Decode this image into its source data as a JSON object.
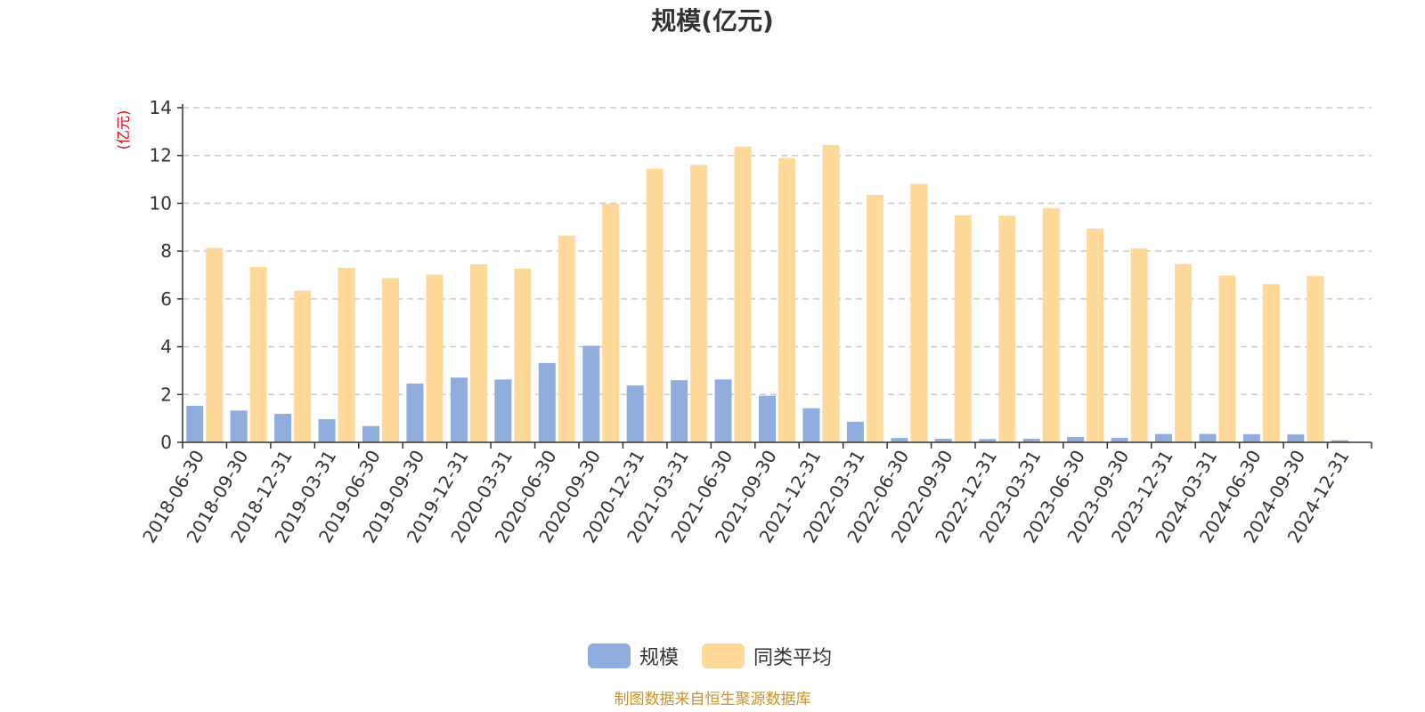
{
  "colors": {
    "series_scale": "#8faedd",
    "series_avg": "#ffd99a",
    "ylabel": "#e8000b",
    "source": "#c9932a",
    "axis": "#333333",
    "grid": "#cccccc"
  },
  "source_text": "制图数据来自恒生聚源数据库",
  "chart_data": {
    "type": "bar",
    "title": "规模(亿元)",
    "ylabel": "(亿元)",
    "xlabel": "",
    "ylim": [
      0,
      14
    ],
    "yticks": [
      0,
      2,
      4,
      6,
      8,
      10,
      12,
      14
    ],
    "grid": true,
    "legend_position": "bottom-center",
    "categories": [
      "2018-06-30",
      "2018-09-30",
      "2018-12-31",
      "2019-03-31",
      "2019-06-30",
      "2019-09-30",
      "2019-12-31",
      "2020-03-31",
      "2020-06-30",
      "2020-09-30",
      "2020-12-31",
      "2021-03-31",
      "2021-06-30",
      "2021-09-30",
      "2021-12-31",
      "2022-03-31",
      "2022-06-30",
      "2022-09-30",
      "2022-12-31",
      "2023-03-31",
      "2023-06-30",
      "2023-09-30",
      "2023-12-31",
      "2024-03-31",
      "2024-06-30",
      "2024-09-30",
      "2024-12-31"
    ],
    "series": [
      {
        "name": "规模",
        "color": "#8faedd",
        "values": [
          1.53,
          1.33,
          1.19,
          0.97,
          0.68,
          2.46,
          2.71,
          2.63,
          3.32,
          4.04,
          2.38,
          2.6,
          2.63,
          1.95,
          1.43,
          0.86,
          0.18,
          0.15,
          0.14,
          0.15,
          0.22,
          0.19,
          0.35,
          0.35,
          0.34,
          0.33,
          0.09
        ]
      },
      {
        "name": "同类平均",
        "color": "#ffd99a",
        "values": [
          8.13,
          7.34,
          6.34,
          7.3,
          6.87,
          7.02,
          7.45,
          7.27,
          8.65,
          9.98,
          11.44,
          11.61,
          12.37,
          11.89,
          12.44,
          10.35,
          10.81,
          9.5,
          9.48,
          9.8,
          8.94,
          8.11,
          7.46,
          6.98,
          6.62,
          6.96,
          0
        ]
      }
    ]
  }
}
